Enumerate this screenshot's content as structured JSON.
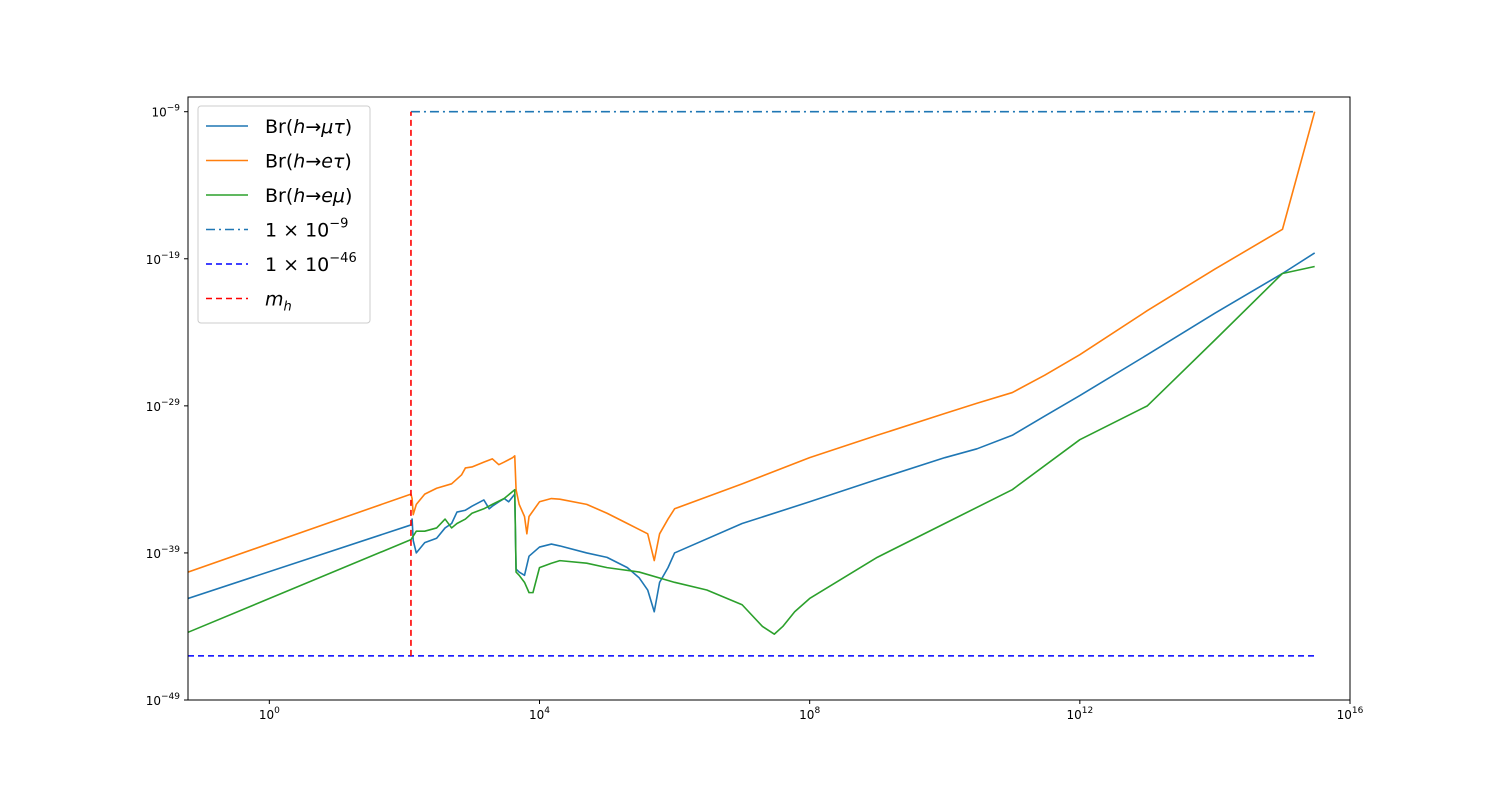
{
  "chart_data": {
    "type": "line",
    "x_scale": "log",
    "y_scale": "log",
    "xlim": [
      0.0625,
      1e+16
    ],
    "ylim": [
      1e-49,
      1e-08
    ],
    "x_ticks": [
      {
        "value": 1,
        "base": "10",
        "exp": "0"
      },
      {
        "value": 10000,
        "base": "10",
        "exp": "4"
      },
      {
        "value": 100000000,
        "base": "10",
        "exp": "8"
      },
      {
        "value": 1000000000000.0,
        "base": "10",
        "exp": "12"
      },
      {
        "value": 1e+16,
        "base": "10",
        "exp": "16"
      }
    ],
    "y_ticks": [
      {
        "value": 1e-09,
        "base": "10",
        "exp": "−9"
      },
      {
        "value": 1e-19,
        "base": "10",
        "exp": "−19"
      },
      {
        "value": 1e-29,
        "base": "10",
        "exp": "−29"
      },
      {
        "value": 1e-39,
        "base": "10",
        "exp": "−39"
      },
      {
        "value": 1e-49,
        "base": "10",
        "exp": "−49"
      }
    ],
    "grid": false,
    "legend_position": "upper-left",
    "series": [
      {
        "name": "Br(h→μτ)",
        "legend": {
          "pre": "Br(",
          "it1": "h",
          "arrow": "→",
          "it2": "μτ",
          "post": ")"
        },
        "color": "#1f77b4",
        "dash": "solid",
        "points": [
          [
            0.0625,
            8e-43
          ],
          [
            125,
            8e-38
          ],
          [
            130,
            2e-37
          ],
          [
            135,
            7e-39
          ],
          [
            150,
            1e-39
          ],
          [
            200,
            5e-39
          ],
          [
            300,
            1e-38
          ],
          [
            400,
            5e-38
          ],
          [
            500,
            1e-37
          ],
          [
            600,
            6e-37
          ],
          [
            800,
            8e-37
          ],
          [
            1000,
            1.5e-36
          ],
          [
            1500,
            4e-36
          ],
          [
            1800,
            1e-36
          ],
          [
            2000,
            1.5e-36
          ],
          [
            2500,
            3e-36
          ],
          [
            3000,
            5e-36
          ],
          [
            3500,
            3e-36
          ],
          [
            4300,
            1e-35
          ],
          [
            4500,
            8e-41
          ],
          [
            5000,
            5e-41
          ],
          [
            6000,
            3e-41
          ],
          [
            7000,
            6e-40
          ],
          [
            10000,
            2.5e-39
          ],
          [
            15000,
            4e-39
          ],
          [
            20000,
            3e-39
          ],
          [
            50000,
            1e-39
          ],
          [
            100000,
            5e-40
          ],
          [
            200000,
            1e-40
          ],
          [
            300000,
            2e-41
          ],
          [
            400000,
            3e-42
          ],
          [
            500000,
            1e-43
          ],
          [
            600000,
            1e-41
          ],
          [
            800000,
            1e-40
          ],
          [
            1000000,
            1e-39
          ],
          [
            10000000,
            1e-37
          ],
          [
            100000000,
            3e-36
          ],
          [
            1000000000.0,
            1e-34
          ],
          [
            10000000000.0,
            3e-33
          ],
          [
            30000000000.0,
            1.2e-32
          ],
          [
            100000000000.0,
            1e-31
          ],
          [
            300000000000.0,
            2e-30
          ],
          [
            1000000000000.0,
            5e-29
          ],
          [
            10000000000000.0,
            3e-26
          ],
          [
            100000000000000.0,
            2e-23
          ],
          [
            1000000000000000.0,
            1e-20
          ],
          [
            3000000000000000.0,
            2.5e-19
          ]
        ]
      },
      {
        "name": "Br(h→eτ)",
        "legend": {
          "pre": "Br(",
          "it1": "h",
          "arrow": "→",
          "it2": "eτ",
          "post": ")"
        },
        "color": "#ff7f0e",
        "dash": "solid",
        "points": [
          [
            0.0625,
            5e-41
          ],
          [
            125,
            1e-35
          ],
          [
            130,
            5e-36
          ],
          [
            135,
            4e-37
          ],
          [
            150,
            2e-36
          ],
          [
            200,
            1e-35
          ],
          [
            300,
            2.5e-35
          ],
          [
            500,
            5e-35
          ],
          [
            700,
            2e-34
          ],
          [
            800,
            6e-34
          ],
          [
            1000,
            7e-34
          ],
          [
            1500,
            1.5e-33
          ],
          [
            2000,
            2.5e-33
          ],
          [
            2500,
            1e-33
          ],
          [
            3000,
            1.5e-33
          ],
          [
            4000,
            3e-33
          ],
          [
            4300,
            4e-33
          ],
          [
            4500,
            2e-35
          ],
          [
            5000,
            2e-36
          ],
          [
            6000,
            3e-37
          ],
          [
            6500,
            2e-38
          ],
          [
            7000,
            3e-37
          ],
          [
            10000,
            3e-36
          ],
          [
            15000,
            5e-36
          ],
          [
            20000,
            4.5e-36
          ],
          [
            50000,
            2e-36
          ],
          [
            100000,
            5e-37
          ],
          [
            200000,
            1e-37
          ],
          [
            400000,
            2e-38
          ],
          [
            500000,
            3e-40
          ],
          [
            600000,
            2e-38
          ],
          [
            800000,
            2e-37
          ],
          [
            1000000,
            1e-36
          ],
          [
            10000000,
            5e-35
          ],
          [
            100000000,
            3e-33
          ],
          [
            1000000000.0,
            1e-31
          ],
          [
            10000000000.0,
            3e-30
          ],
          [
            30000000000.0,
            1.5e-29
          ],
          [
            100000000000.0,
            8e-29
          ],
          [
            300000000000.0,
            1.2e-27
          ],
          [
            1000000000000.0,
            3e-26
          ],
          [
            10000000000000.0,
            3e-23
          ],
          [
            100000000000000.0,
            2e-20
          ],
          [
            1000000000000000.0,
            1e-17
          ],
          [
            3000000000000000.0,
            1e-09
          ]
        ]
      },
      {
        "name": "Br(h→eμ)",
        "legend": {
          "pre": "Br(",
          "it1": "h",
          "arrow": "→",
          "it2": "eμ",
          "post": ")"
        },
        "color": "#2ca02c",
        "dash": "solid",
        "points": [
          [
            0.0625,
            4e-45
          ],
          [
            125,
            8e-39
          ],
          [
            150,
            3e-38
          ],
          [
            200,
            3e-38
          ],
          [
            300,
            5e-38
          ],
          [
            400,
            2e-37
          ],
          [
            500,
            5e-38
          ],
          [
            600,
            1e-37
          ],
          [
            800,
            2e-37
          ],
          [
            1000,
            5e-37
          ],
          [
            1500,
            1e-36
          ],
          [
            2000,
            2e-36
          ],
          [
            3000,
            5e-36
          ],
          [
            4000,
            1.5e-35
          ],
          [
            4300,
            2e-35
          ],
          [
            4500,
            5e-41
          ],
          [
            5000,
            3e-41
          ],
          [
            6000,
            1e-41
          ],
          [
            7000,
            2e-42
          ],
          [
            8000,
            2e-42
          ],
          [
            10000,
            1e-40
          ],
          [
            15000,
            2e-40
          ],
          [
            20000,
            3e-40
          ],
          [
            50000,
            2e-40
          ],
          [
            100000,
            1e-40
          ],
          [
            300000,
            5e-41
          ],
          [
            1000000,
            1e-41
          ],
          [
            3000000,
            3e-42
          ],
          [
            10000000,
            3e-43
          ],
          [
            20000000,
            1e-44
          ],
          [
            30000000,
            3e-45
          ],
          [
            40000000,
            1e-44
          ],
          [
            60000000,
            1e-43
          ],
          [
            100000000,
            8e-43
          ],
          [
            1000000000.0,
            5e-40
          ],
          [
            10000000000.0,
            1e-37
          ],
          [
            100000000000.0,
            2e-35
          ],
          [
            1000000000000.0,
            5e-32
          ],
          [
            10000000000000.0,
            1e-29
          ],
          [
            100000000000000.0,
            3e-25
          ],
          [
            1000000000000000.0,
            1e-20
          ],
          [
            3000000000000000.0,
            3e-20
          ]
        ]
      },
      {
        "name": "1 × 10⁻⁹",
        "legend": {
          "num": "1",
          "times": "×",
          "base": "10",
          "exp": "−9"
        },
        "color": "#1f77b4",
        "dash": "dashdot",
        "points": [
          [
            125,
            1e-09
          ],
          [
            3000000000000000.0,
            1e-09
          ]
        ]
      },
      {
        "name": "1 × 10⁻⁴⁶",
        "legend": {
          "num": "1",
          "times": "×",
          "base": "10",
          "exp": "−46"
        },
        "color": "#0000ff",
        "dash": "dashed",
        "points": [
          [
            0.0625,
            1e-46
          ],
          [
            3000000000000000.0,
            1e-46
          ]
        ]
      },
      {
        "name": "m_h",
        "legend": {
          "it1": "m",
          "sub": "h"
        },
        "color": "#ff0000",
        "dash": "dashed",
        "points": [
          [
            125,
            1e-46
          ],
          [
            125,
            1e-09
          ]
        ]
      }
    ]
  }
}
